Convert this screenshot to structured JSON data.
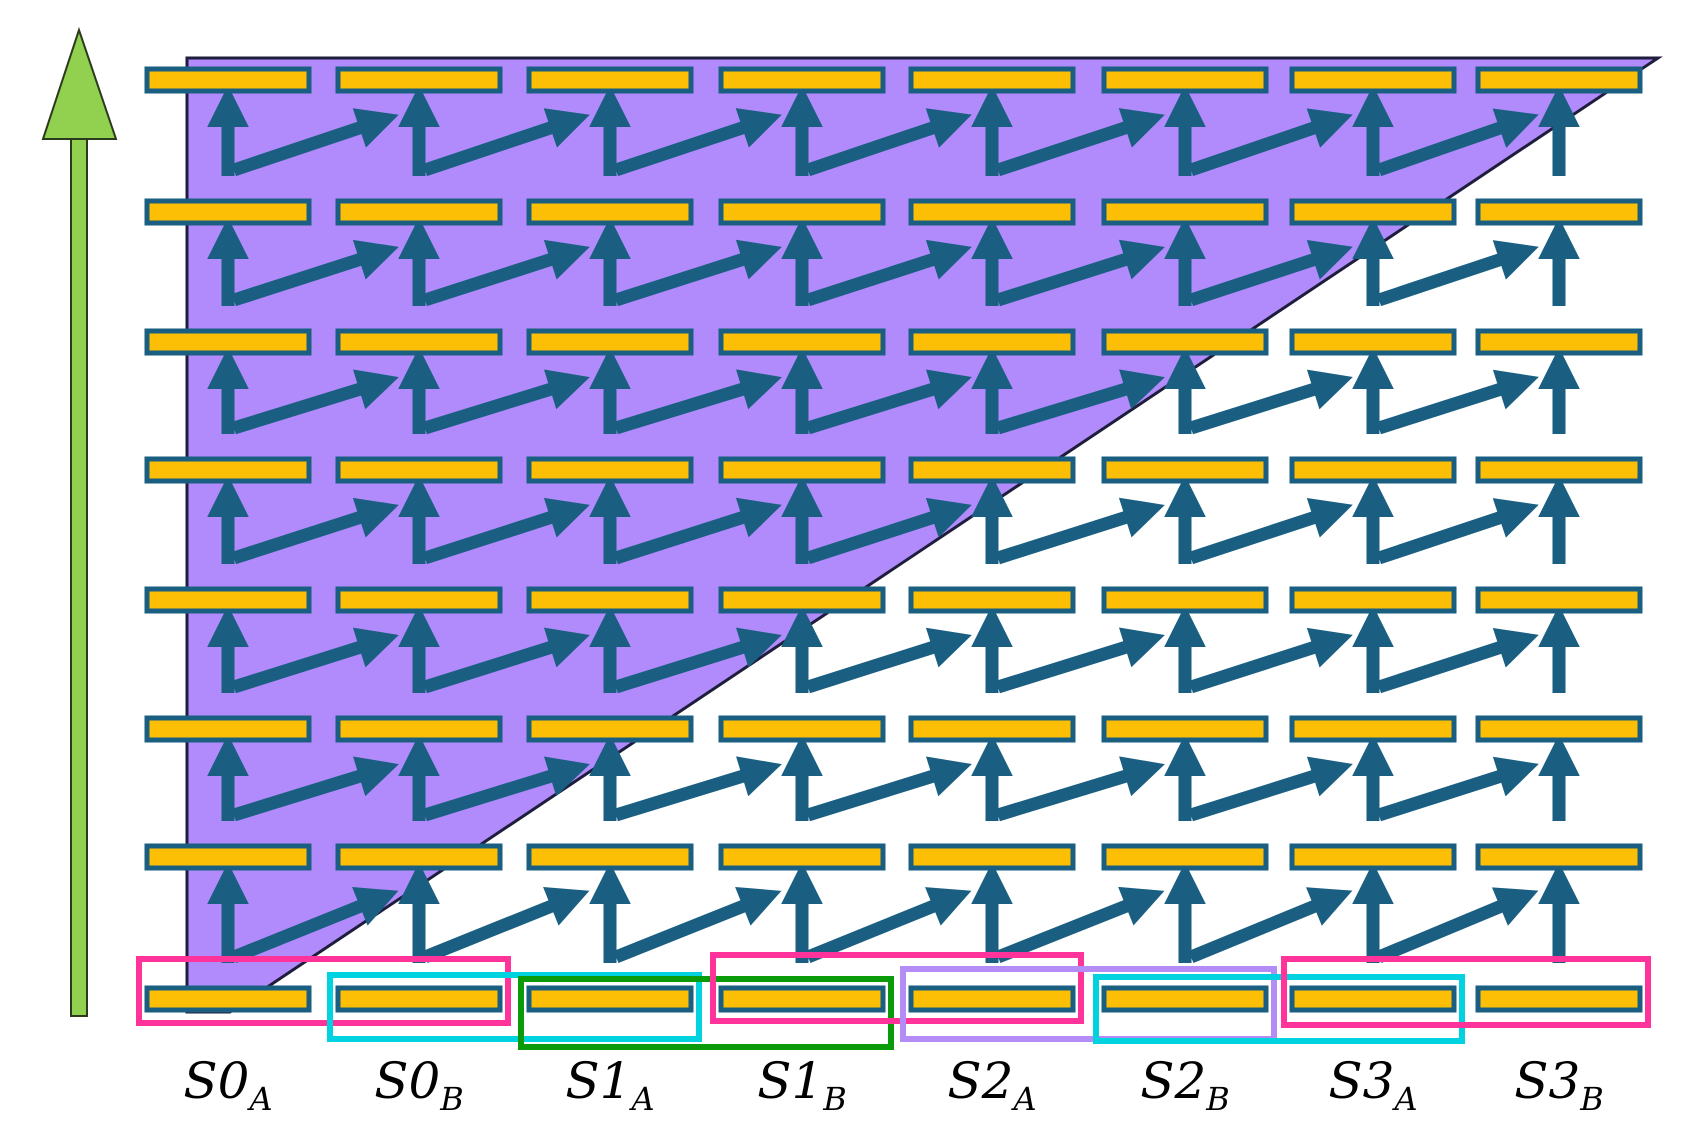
{
  "colors": {
    "triangle_fill": "#b18bfb",
    "block_fill": "#fcbf05",
    "block_stroke": "#1a5f82",
    "arrow": "#1a5f82",
    "up_arrow": "#92d050",
    "up_arrow_stroke": "#2b3a1d"
  },
  "diagram": {
    "columns": 8,
    "layers": 8,
    "shaded_region": "upper-left triangle",
    "columns_labels": [
      {
        "main": "S0",
        "sub": "A"
      },
      {
        "main": "S0",
        "sub": "B"
      },
      {
        "main": "S1",
        "sub": "A"
      },
      {
        "main": "S1",
        "sub": "B"
      },
      {
        "main": "S2",
        "sub": "A"
      },
      {
        "main": "S2",
        "sub": "B"
      },
      {
        "main": "S3",
        "sub": "A"
      },
      {
        "main": "S3",
        "sub": "B"
      }
    ],
    "groups": [
      {
        "color": "#ff3399",
        "start": 0,
        "end": 1
      },
      {
        "color": "#00d2e0",
        "start": 1,
        "end": 2
      },
      {
        "color": "#0a9a0a",
        "start": 2,
        "end": 3
      },
      {
        "color": "#ff3399",
        "start": 3,
        "end": 4
      },
      {
        "color": "#b38cf5",
        "start": 4,
        "end": 5
      },
      {
        "color": "#00d2e0",
        "start": 5,
        "end": 6
      },
      {
        "color": "#ff3399",
        "start": 6,
        "end": 7
      }
    ]
  }
}
